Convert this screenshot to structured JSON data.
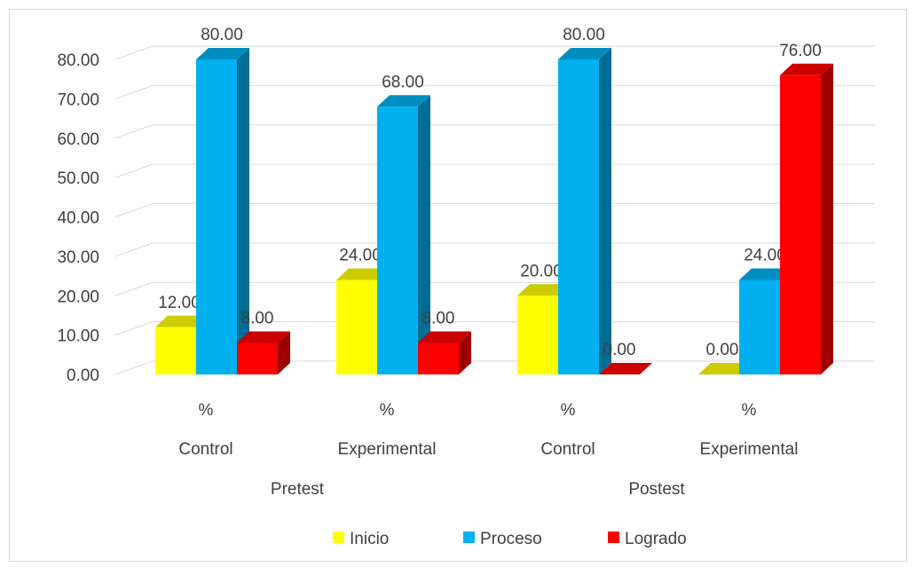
{
  "chart_data": {
    "type": "bar",
    "title": "",
    "xlabel": "",
    "ylabel": "",
    "ylim": [
      0,
      80
    ],
    "yticks": [
      "0.00",
      "10.00",
      "20.00",
      "30.00",
      "40.00",
      "50.00",
      "60.00",
      "70.00",
      "80.00"
    ],
    "grid": true,
    "legend_position": "bottom",
    "categories": [
      {
        "unit": "%",
        "group": "Control",
        "phase": "Pretest"
      },
      {
        "unit": "%",
        "group": "Experimental",
        "phase": "Pretest"
      },
      {
        "unit": "%",
        "group": "Control",
        "phase": "Postest"
      },
      {
        "unit": "%",
        "group": "Experimental",
        "phase": "Postest"
      }
    ],
    "phases": [
      "Pretest",
      "Postest"
    ],
    "series": [
      {
        "name": "Inicio",
        "color": "#ffff00",
        "values": [
          12.0,
          24.0,
          20.0,
          0.0
        ],
        "labels": [
          "12.00",
          "24.00",
          "20.00",
          "0.00"
        ]
      },
      {
        "name": "Proceso",
        "color": "#00b0f0",
        "values": [
          80.0,
          68.0,
          80.0,
          24.0
        ],
        "labels": [
          "80.00",
          "68.00",
          "80.00",
          "24.00"
        ]
      },
      {
        "name": "Logrado",
        "color": "#ff0000",
        "values": [
          8.0,
          8.0,
          0.0,
          76.0
        ],
        "labels": [
          "8.00",
          "8.00",
          "0.00",
          "76.00"
        ]
      }
    ]
  }
}
